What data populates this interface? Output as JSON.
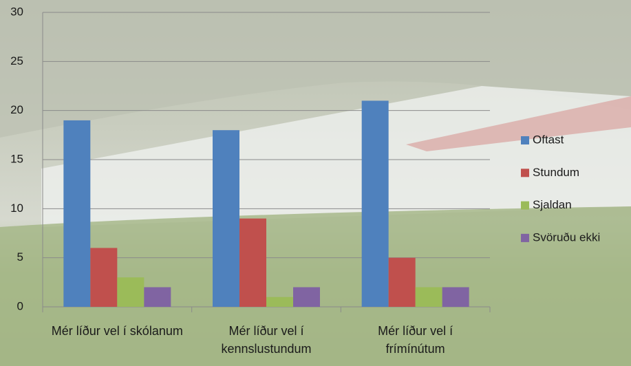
{
  "chart_data": {
    "type": "bar",
    "categories": [
      "Mér líður vel í skólanum",
      "Mér líður vel í kennslustundum",
      "Mér líður vel í frímínútum"
    ],
    "series": [
      {
        "name": "Oftast",
        "color": "#4f81bd",
        "values": [
          19,
          18,
          21
        ]
      },
      {
        "name": "Stundum",
        "color": "#c0504d",
        "values": [
          6,
          9,
          5
        ]
      },
      {
        "name": "Sjaldan",
        "color": "#9bbb59",
        "values": [
          3,
          1,
          2
        ]
      },
      {
        "name": "Svöruðu ekki",
        "color": "#8064a2",
        "values": [
          2,
          2,
          2
        ]
      }
    ],
    "ylim": [
      0,
      30
    ],
    "yticks": [
      0,
      5,
      10,
      15,
      20,
      25,
      30
    ],
    "grid": true,
    "legend": "right"
  }
}
